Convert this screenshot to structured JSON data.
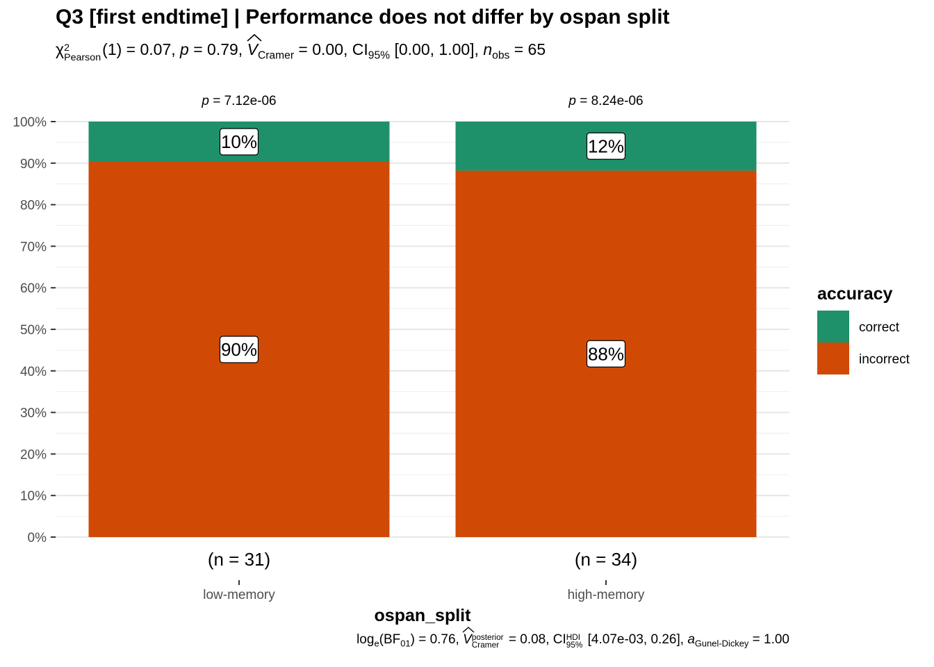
{
  "chart_data": {
    "type": "bar",
    "stacked": "percent",
    "title": "Q3 [first endtime] | Performance does not differ by ospan split",
    "subtitle": {
      "chi_label": "χ",
      "chi_sup": "2",
      "chi_sub": "Pearson",
      "df": "(1) = 0.07, ",
      "p_label": "p",
      "p_value": " = 0.79, ",
      "v_label": "V",
      "v_sub": "Cramer",
      "v_value": " = 0.00, CI",
      "ci_sub": "95%",
      "ci_value": " [0.00, 1.00], ",
      "n_label": "n",
      "n_sub": "obs",
      "n_value": " = 65"
    },
    "caption": {
      "log": "log",
      "log_sub": "e",
      "bf": "(BF",
      "bf_sub": "01",
      "bf_value": ") = 0.76, ",
      "v_label": "V",
      "v_sup": "posterior",
      "v_sub": "Cramer",
      "v_value": " = 0.08, CI",
      "ci_sup": "HDI",
      "ci_sub": "95%",
      "ci_value": " [4.07e-03, 0.26], ",
      "a_label": "a",
      "a_sub": "Gunel-Dickey",
      "a_value": " = 1.00"
    },
    "xlabel": "ospan_split",
    "ylabel": "",
    "ylim": [
      0,
      100
    ],
    "yticks": [
      "0%",
      "10%",
      "20%",
      "30%",
      "40%",
      "50%",
      "60%",
      "70%",
      "80%",
      "90%",
      "100%"
    ],
    "categories": [
      "low-memory",
      "high-memory"
    ],
    "n_labels": [
      "(n = 31)",
      "(n = 34)"
    ],
    "p_labels": [
      {
        "p": "p",
        "value": " = 7.12e-06"
      },
      {
        "p": "p",
        "value": " = 8.24e-06"
      }
    ],
    "series": [
      {
        "name": "incorrect",
        "values": [
          90.3,
          88.2
        ],
        "labels": [
          "90%",
          "88%"
        ],
        "color": "#D04A06"
      },
      {
        "name": "correct",
        "values": [
          9.7,
          11.8
        ],
        "labels": [
          "10%",
          "12%"
        ],
        "color": "#1E916A"
      }
    ],
    "legend": {
      "title": "accuracy",
      "position": "right",
      "items": [
        {
          "label": "correct",
          "color": "#1E916A"
        },
        {
          "label": "incorrect",
          "color": "#D04A06"
        }
      ]
    },
    "grid": true
  }
}
